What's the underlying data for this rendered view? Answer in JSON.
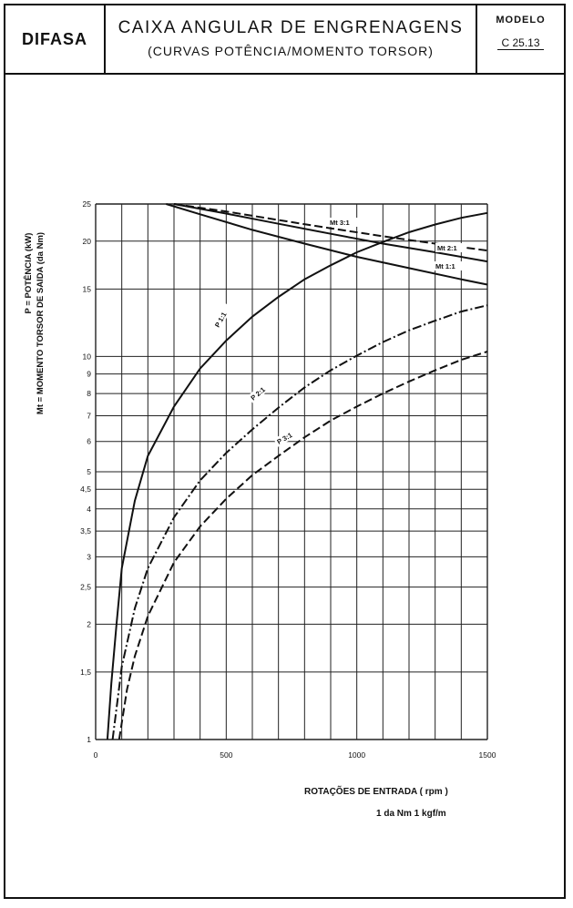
{
  "header": {
    "brand": "DIFASA",
    "title": "CAIXA ANGULAR DE ENGRENAGENS",
    "subtitle": "(CURVAS POTÊNCIA/MOMENTO TORSOR)",
    "model_label": "MODELO",
    "model_code": "C 25.13"
  },
  "footer": {
    "xlabel": "ROTAÇÕES DE ENTRADA ( rpm )",
    "unit_note": "1 da Nm   1 kgf/m"
  },
  "chart_data": {
    "type": "line",
    "title": "",
    "ylabel_line1": "P = POTÊNCIA (kW)",
    "ylabel_line2": "Mt = MOMENTO TORSOR DE SAIDA (da Nm)",
    "xlabel": "ROTAÇÕES DE ENTRADA ( rpm )",
    "xlim": [
      0,
      1500
    ],
    "ylim": [
      1,
      25
    ],
    "y_scale": "log",
    "grid": true,
    "x_ticks": [
      0,
      500,
      1000,
      1500
    ],
    "x_tick_labels": [
      "0",
      "500",
      "1000",
      "1500"
    ],
    "x_gridlines": [
      0,
      100,
      200,
      300,
      400,
      500,
      600,
      700,
      800,
      900,
      1000,
      1100,
      1200,
      1300,
      1400,
      1500
    ],
    "y_ticks": [
      1,
      1.5,
      2,
      2.5,
      3,
      3.5,
      4,
      4.5,
      5,
      6,
      7,
      8,
      9,
      10,
      15,
      20,
      25
    ],
    "y_tick_labels": [
      "1",
      "1,5",
      "2",
      "2,5",
      "3",
      "3,5",
      "4",
      "4,5",
      "5",
      "6",
      "7",
      "8",
      "9",
      "10",
      "15",
      "20",
      "25"
    ],
    "series": [
      {
        "name": "P 1:1",
        "style": "solid",
        "x": [
          45,
          60,
          80,
          100,
          150,
          200,
          300,
          400,
          500,
          600,
          700,
          800,
          900,
          1000,
          1100,
          1200,
          1300,
          1400,
          1500
        ],
        "y": [
          1.0,
          1.4,
          2.0,
          2.8,
          4.2,
          5.5,
          7.4,
          9.3,
          11.0,
          12.7,
          14.3,
          15.9,
          17.3,
          18.7,
          19.9,
          21.1,
          22.1,
          23.0,
          23.7
        ]
      },
      {
        "name": "P 2:1",
        "style": "dashdot",
        "x": [
          65,
          100,
          150,
          200,
          300,
          400,
          500,
          600,
          700,
          800,
          900,
          1000,
          1100,
          1200,
          1300,
          1400,
          1500
        ],
        "y": [
          1.0,
          1.55,
          2.2,
          2.8,
          3.8,
          4.75,
          5.6,
          6.45,
          7.35,
          8.3,
          9.2,
          10.05,
          10.9,
          11.7,
          12.4,
          13.1,
          13.6
        ]
      },
      {
        "name": "P 3:1",
        "style": "dashed",
        "x": [
          90,
          120,
          150,
          200,
          300,
          400,
          500,
          600,
          700,
          800,
          900,
          1000,
          1100,
          1200,
          1300,
          1400,
          1500
        ],
        "y": [
          1.0,
          1.35,
          1.65,
          2.1,
          2.9,
          3.6,
          4.25,
          4.9,
          5.5,
          6.15,
          6.8,
          7.4,
          8.0,
          8.6,
          9.2,
          9.8,
          10.3
        ]
      },
      {
        "name": "Mt 1:1",
        "style": "solid",
        "x": [
          270,
          400,
          600,
          800,
          1000,
          1200,
          1400,
          1500
        ],
        "y": [
          25,
          23.5,
          21.4,
          19.7,
          18.2,
          17.0,
          15.9,
          15.4
        ]
      },
      {
        "name": "Mt 2:1",
        "style": "solid",
        "x": [
          300,
          500,
          700,
          900,
          1100,
          1300,
          1500
        ],
        "y": [
          25,
          23.6,
          22.2,
          20.9,
          19.7,
          18.7,
          17.7
        ]
      },
      {
        "name": "Mt 3:1",
        "style": "dashed",
        "x": [
          300,
          500,
          700,
          900,
          1100,
          1300,
          1500
        ],
        "y": [
          25,
          23.9,
          22.7,
          21.6,
          20.6,
          19.7,
          18.9
        ]
      }
    ]
  }
}
